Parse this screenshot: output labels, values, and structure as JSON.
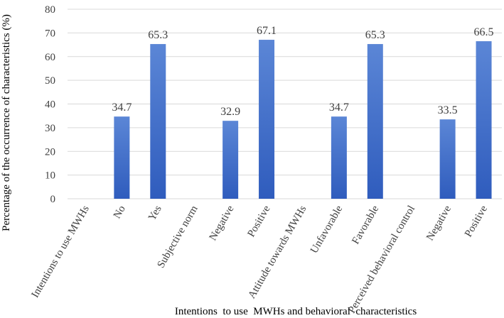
{
  "chart_data": {
    "type": "bar",
    "categories": [
      "Intentions to use MWHs",
      "No",
      "Yes",
      "Subjective norm",
      "Negative",
      "Positive",
      "Attitude towards MWHs",
      "Unfavorable",
      "Favorable",
      "Perceived behavioral control",
      "Negative",
      "Positive"
    ],
    "values": [
      null,
      34.7,
      65.3,
      null,
      32.9,
      67.1,
      null,
      34.7,
      65.3,
      null,
      33.5,
      66.5
    ],
    "data_labels": [
      "",
      "34.7",
      "65.3",
      "",
      "32.9",
      "67.1",
      "",
      "34.7",
      "65.3",
      "",
      "33.5",
      "66.5"
    ],
    "title": "",
    "xlabel": "Intentions  to use  MWHs and behavioral  characteristics",
    "ylabel": "Percentage of the occurrence of characteristics (%)",
    "ylim": [
      0,
      80
    ],
    "yticks": [
      "0",
      "10",
      "20",
      "30",
      "40",
      "50",
      "60",
      "70",
      "80"
    ],
    "grid": true,
    "legend": "none",
    "colors": {
      "bar_top": "#5b86d6",
      "bar_bottom": "#2f5cbd",
      "grid": "#d9d9d9",
      "text": "#404040"
    }
  }
}
